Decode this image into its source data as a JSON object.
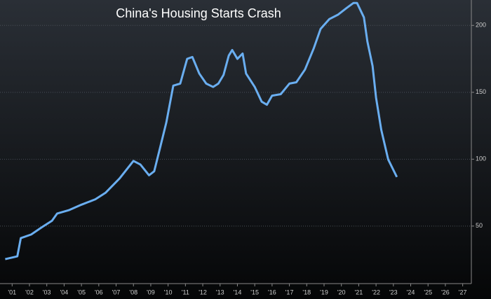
{
  "chart_data": {
    "type": "line",
    "title": "China's Housing Starts Crash",
    "x": [
      2001.1,
      2001.8,
      2002.0,
      2002.6,
      2003.2,
      2003.8,
      2004.1,
      2004.8,
      2005.5,
      2006.3,
      2006.9,
      2007.7,
      2008.5,
      2008.9,
      2009.4,
      2009.7,
      2010.0,
      2010.4,
      2010.8,
      2011.2,
      2011.6,
      2011.9,
      2012.3,
      2012.7,
      2013.1,
      2013.4,
      2013.7,
      2014.0,
      2014.2,
      2014.5,
      2014.8,
      2015.0,
      2015.5,
      2015.9,
      2016.2,
      2016.5,
      2017.0,
      2017.5,
      2017.9,
      2018.4,
      2018.9,
      2019.3,
      2019.8,
      2020.3,
      2020.8,
      2021.2,
      2021.4,
      2021.8,
      2022.0,
      2022.3,
      2022.5,
      2022.8,
      2023.2,
      2023.7
    ],
    "series": [
      {
        "color": "#6aaef0",
        "values": [
          25.3,
          27.4,
          41,
          43.7,
          49,
          54,
          59.4,
          62,
          66,
          70,
          75,
          85.6,
          98.7,
          96,
          88,
          91,
          106.6,
          127.6,
          155,
          156.5,
          175,
          176.4,
          164,
          156.5,
          154,
          156.5,
          163,
          177.4,
          181.6,
          175,
          179,
          164,
          154,
          143,
          140.7,
          147.5,
          148.6,
          156.5,
          157.5,
          167,
          182.7,
          197.4,
          204.7,
          208,
          213,
          216.8,
          216.8,
          206,
          188,
          169.6,
          146,
          122,
          99.8,
          86.7
        ]
      }
    ],
    "xlim": [
      2000.8,
      2028.0
    ],
    "xticks": [
      {
        "value": 2001.5,
        "label": "'01"
      },
      {
        "value": 2002.5,
        "label": "'02"
      },
      {
        "value": 2003.5,
        "label": "'03"
      },
      {
        "value": 2004.5,
        "label": "'04"
      },
      {
        "value": 2005.5,
        "label": "'05"
      },
      {
        "value": 2006.5,
        "label": "'06"
      },
      {
        "value": 2007.5,
        "label": "'07"
      },
      {
        "value": 2008.5,
        "label": "'08"
      },
      {
        "value": 2009.5,
        "label": "'09"
      },
      {
        "value": 2010.5,
        "label": "'10"
      },
      {
        "value": 2011.5,
        "label": "'11"
      },
      {
        "value": 2012.5,
        "label": "'12"
      },
      {
        "value": 2013.5,
        "label": "'13"
      },
      {
        "value": 2014.5,
        "label": "'14"
      },
      {
        "value": 2015.5,
        "label": "'15"
      },
      {
        "value": 2016.5,
        "label": "'16"
      },
      {
        "value": 2017.5,
        "label": "'17"
      },
      {
        "value": 2018.5,
        "label": "'18"
      },
      {
        "value": 2019.5,
        "label": "'19"
      },
      {
        "value": 2020.5,
        "label": "'20"
      },
      {
        "value": 2021.5,
        "label": "'21"
      },
      {
        "value": 2022.5,
        "label": "'22"
      },
      {
        "value": 2023.5,
        "label": "'23"
      },
      {
        "value": 2024.5,
        "label": "'24"
      },
      {
        "value": 2025.5,
        "label": "'25"
      },
      {
        "value": 2026.5,
        "label": "'26"
      },
      {
        "value": 2027.5,
        "label": "'27"
      }
    ],
    "ylim": [
      7,
      219
    ],
    "yticks": [
      50,
      100,
      150,
      200
    ],
    "grid": true
  }
}
